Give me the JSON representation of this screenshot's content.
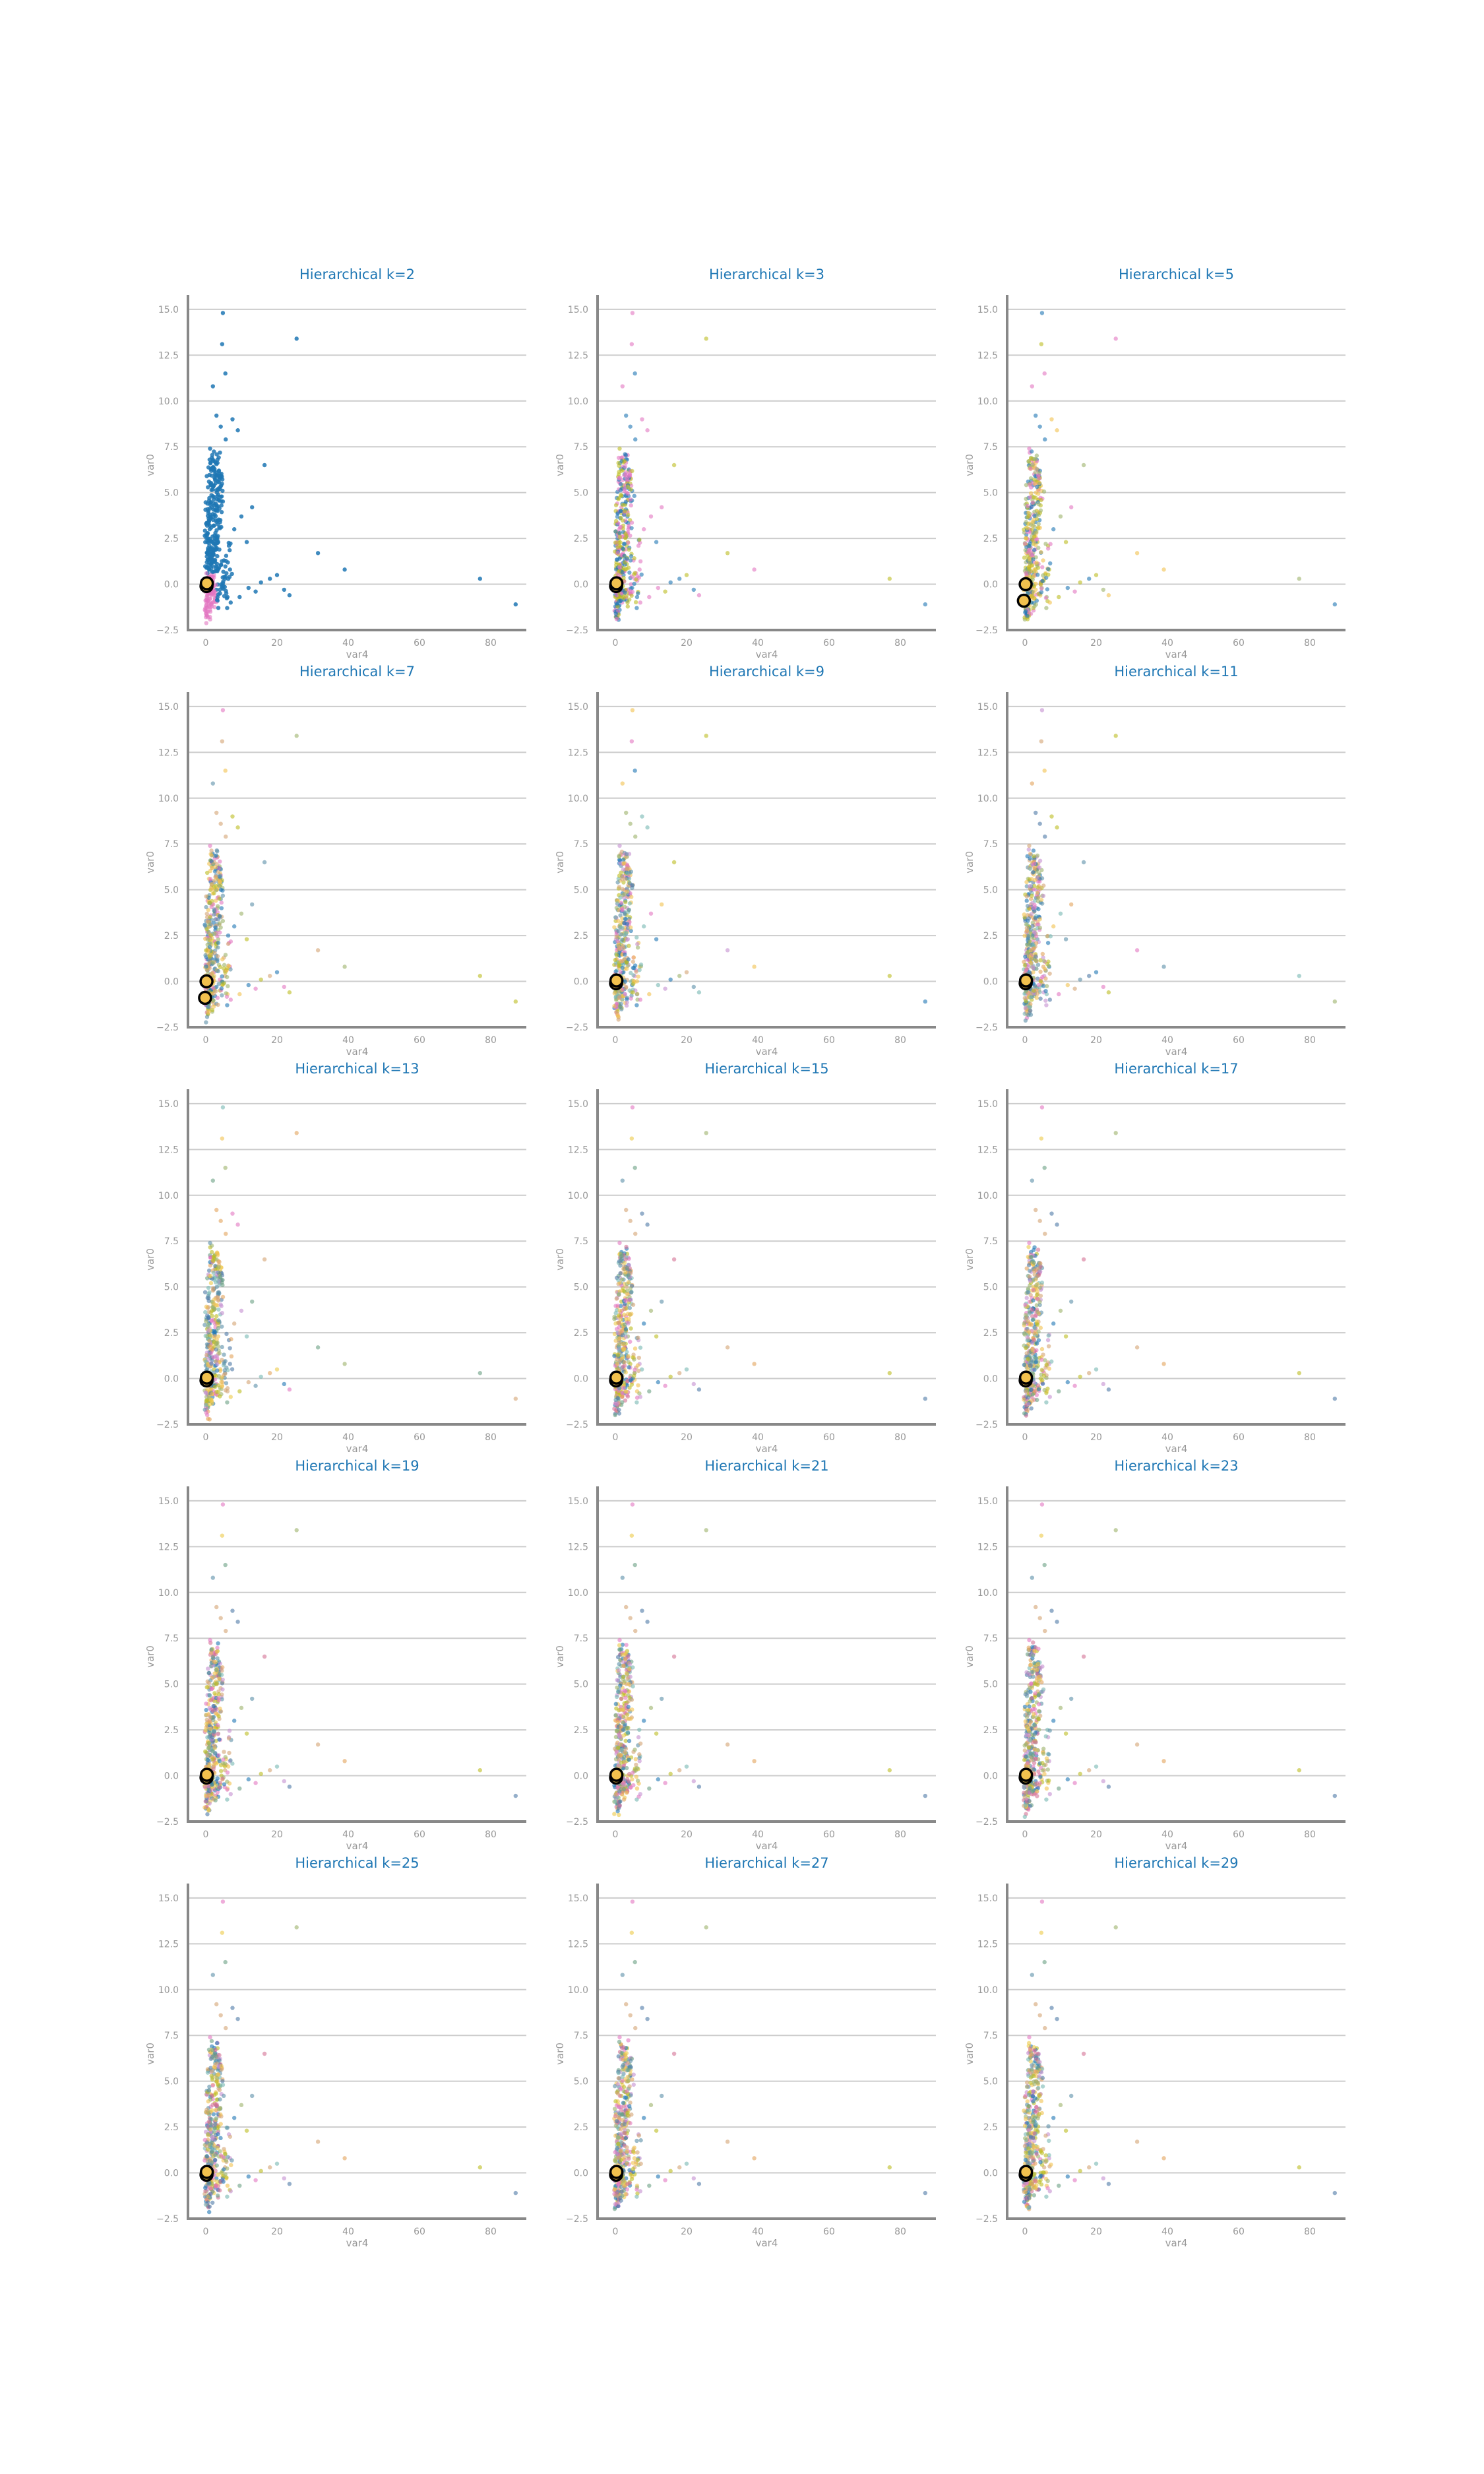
{
  "colors": {
    "title": "#1f77b4",
    "axis_text": "#999999",
    "spine": "#888888",
    "grid": "#cccccc",
    "palette": [
      "#1f77b4",
      "#e377c2",
      "#bcbd22",
      "#9db26b",
      "#f2c14e",
      "#d4a373",
      "#5b8fa8",
      "#76b7b2",
      "#c490d1",
      "#4e79a7",
      "#e2a35c",
      "#6aa084",
      "#edc948",
      "#d37295"
    ]
  },
  "chart_data": [
    {
      "type": "scatter",
      "title": "Hierarchical k=2",
      "xlabel": "var4",
      "ylabel": "var0",
      "xlim": [
        -5,
        90
      ],
      "ylim": [
        -2.5,
        15.5
      ],
      "xticks": [
        "0",
        "20",
        "40",
        "60",
        "80"
      ],
      "yticks": [
        "−2.5",
        "0.0",
        "2.5",
        "5.0",
        "7.5",
        "10.0",
        "12.5",
        "15.0"
      ],
      "grid": "horizontal",
      "k": 2,
      "centers": [
        [
          0.2,
          -0.1
        ],
        [
          0.3,
          0.05
        ]
      ]
    },
    {
      "type": "scatter",
      "title": "Hierarchical k=3",
      "xlabel": "var4",
      "ylabel": "var0",
      "xlim": [
        -5,
        90
      ],
      "ylim": [
        -2.5,
        15.5
      ],
      "xticks": [
        "0",
        "20",
        "40",
        "60",
        "80"
      ],
      "yticks": [
        "−2.5",
        "0.0",
        "2.5",
        "5.0",
        "7.5",
        "10.0",
        "12.5",
        "15.0"
      ],
      "grid": "horizontal",
      "k": 3,
      "centers": [
        [
          0.2,
          -0.1
        ],
        [
          0.3,
          0.05
        ]
      ]
    },
    {
      "type": "scatter",
      "title": "Hierarchical k=5",
      "xlabel": "var4",
      "ylabel": "var0",
      "xlim": [
        -5,
        90
      ],
      "ylim": [
        -2.5,
        15.5
      ],
      "xticks": [
        "0",
        "20",
        "40",
        "60",
        "80"
      ],
      "yticks": [
        "−2.5",
        "0.0",
        "2.5",
        "5.0",
        "7.5",
        "10.0",
        "12.5",
        "15.0"
      ],
      "grid": "horizontal",
      "k": 5,
      "centers": [
        [
          0.2,
          0.0
        ],
        [
          -0.3,
          -0.9
        ]
      ]
    },
    {
      "type": "scatter",
      "title": "Hierarchical k=7",
      "xlabel": "var4",
      "ylabel": "var0",
      "xlim": [
        -5,
        90
      ],
      "ylim": [
        -2.5,
        15.5
      ],
      "xticks": [
        "0",
        "20",
        "40",
        "60",
        "80"
      ],
      "yticks": [
        "−2.5",
        "0.0",
        "2.5",
        "5.0",
        "7.5",
        "10.0",
        "12.5",
        "15.0"
      ],
      "grid": "horizontal",
      "k": 7,
      "centers": [
        [
          0.2,
          0.0
        ],
        [
          -0.2,
          -0.9
        ]
      ]
    },
    {
      "type": "scatter",
      "title": "Hierarchical k=9",
      "xlabel": "var4",
      "ylabel": "var0",
      "xlim": [
        -5,
        90
      ],
      "ylim": [
        -2.5,
        15.5
      ],
      "xticks": [
        "0",
        "20",
        "40",
        "60",
        "80"
      ],
      "yticks": [
        "−2.5",
        "0.0",
        "2.5",
        "5.0",
        "7.5",
        "10.0",
        "12.5",
        "15.0"
      ],
      "grid": "horizontal",
      "k": 9,
      "centers": [
        [
          0.2,
          -0.1
        ],
        [
          0.3,
          0.05
        ]
      ]
    },
    {
      "type": "scatter",
      "title": "Hierarchical k=11",
      "xlabel": "var4",
      "ylabel": "var0",
      "xlim": [
        -5,
        90
      ],
      "ylim": [
        -2.5,
        15.5
      ],
      "xticks": [
        "0",
        "20",
        "40",
        "60",
        "80"
      ],
      "yticks": [
        "−2.5",
        "0.0",
        "2.5",
        "5.0",
        "7.5",
        "10.0",
        "12.5",
        "15.0"
      ],
      "grid": "horizontal",
      "k": 11,
      "centers": [
        [
          0.2,
          -0.1
        ],
        [
          0.3,
          0.05
        ]
      ]
    },
    {
      "type": "scatter",
      "title": "Hierarchical k=13",
      "xlabel": "var4",
      "ylabel": "var0",
      "xlim": [
        -5,
        90
      ],
      "ylim": [
        -2.5,
        15.5
      ],
      "xticks": [
        "0",
        "20",
        "40",
        "60",
        "80"
      ],
      "yticks": [
        "−2.5",
        "0.0",
        "2.5",
        "5.0",
        "7.5",
        "10.0",
        "12.5",
        "15.0"
      ],
      "grid": "horizontal",
      "k": 13,
      "centers": [
        [
          0.2,
          -0.1
        ],
        [
          0.3,
          0.05
        ]
      ]
    },
    {
      "type": "scatter",
      "title": "Hierarchical k=15",
      "xlabel": "var4",
      "ylabel": "var0",
      "xlim": [
        -5,
        90
      ],
      "ylim": [
        -2.5,
        15.5
      ],
      "xticks": [
        "0",
        "20",
        "40",
        "60",
        "80"
      ],
      "yticks": [
        "−2.5",
        "0.0",
        "2.5",
        "5.0",
        "7.5",
        "10.0",
        "12.5",
        "15.0"
      ],
      "grid": "horizontal",
      "k": 15,
      "centers": [
        [
          0.2,
          -0.1
        ],
        [
          0.3,
          0.05
        ]
      ]
    },
    {
      "type": "scatter",
      "title": "Hierarchical k=17",
      "xlabel": "var4",
      "ylabel": "var0",
      "xlim": [
        -5,
        90
      ],
      "ylim": [
        -2.5,
        15.5
      ],
      "xticks": [
        "0",
        "20",
        "40",
        "60",
        "80"
      ],
      "yticks": [
        "−2.5",
        "0.0",
        "2.5",
        "5.0",
        "7.5",
        "10.0",
        "12.5",
        "15.0"
      ],
      "grid": "horizontal",
      "k": 17,
      "centers": [
        [
          0.2,
          -0.1
        ],
        [
          0.3,
          0.05
        ]
      ]
    },
    {
      "type": "scatter",
      "title": "Hierarchical k=19",
      "xlabel": "var4",
      "ylabel": "var0",
      "xlim": [
        -5,
        90
      ],
      "ylim": [
        -2.5,
        15.5
      ],
      "xticks": [
        "0",
        "20",
        "40",
        "60",
        "80"
      ],
      "yticks": [
        "−2.5",
        "0.0",
        "2.5",
        "5.0",
        "7.5",
        "10.0",
        "12.5",
        "15.0"
      ],
      "grid": "horizontal",
      "k": 19,
      "centers": [
        [
          0.2,
          -0.1
        ],
        [
          0.3,
          0.05
        ]
      ]
    },
    {
      "type": "scatter",
      "title": "Hierarchical k=21",
      "xlabel": "var4",
      "ylabel": "var0",
      "xlim": [
        -5,
        90
      ],
      "ylim": [
        -2.5,
        15.5
      ],
      "xticks": [
        "0",
        "20",
        "40",
        "60",
        "80"
      ],
      "yticks": [
        "−2.5",
        "0.0",
        "2.5",
        "5.0",
        "7.5",
        "10.0",
        "12.5",
        "15.0"
      ],
      "grid": "horizontal",
      "k": 21,
      "centers": [
        [
          0.2,
          -0.1
        ],
        [
          0.3,
          0.05
        ]
      ]
    },
    {
      "type": "scatter",
      "title": "Hierarchical k=23",
      "xlabel": "var4",
      "ylabel": "var0",
      "xlim": [
        -5,
        90
      ],
      "ylim": [
        -2.5,
        15.5
      ],
      "xticks": [
        "0",
        "20",
        "40",
        "60",
        "80"
      ],
      "yticks": [
        "−2.5",
        "0.0",
        "2.5",
        "5.0",
        "7.5",
        "10.0",
        "12.5",
        "15.0"
      ],
      "grid": "horizontal",
      "k": 23,
      "centers": [
        [
          0.2,
          -0.1
        ],
        [
          0.3,
          0.05
        ]
      ]
    },
    {
      "type": "scatter",
      "title": "Hierarchical k=25",
      "xlabel": "var4",
      "ylabel": "var0",
      "xlim": [
        -5,
        90
      ],
      "ylim": [
        -2.5,
        15.5
      ],
      "xticks": [
        "0",
        "20",
        "40",
        "60",
        "80"
      ],
      "yticks": [
        "−2.5",
        "0.0",
        "2.5",
        "5.0",
        "7.5",
        "10.0",
        "12.5",
        "15.0"
      ],
      "grid": "horizontal",
      "k": 25,
      "centers": [
        [
          0.2,
          -0.1
        ],
        [
          0.3,
          0.05
        ]
      ]
    },
    {
      "type": "scatter",
      "title": "Hierarchical k=27",
      "xlabel": "var4",
      "ylabel": "var0",
      "xlim": [
        -5,
        90
      ],
      "ylim": [
        -2.5,
        15.5
      ],
      "xticks": [
        "0",
        "20",
        "40",
        "60",
        "80"
      ],
      "yticks": [
        "−2.5",
        "0.0",
        "2.5",
        "5.0",
        "7.5",
        "10.0",
        "12.5",
        "15.0"
      ],
      "grid": "horizontal",
      "k": 27,
      "centers": [
        [
          0.2,
          -0.1
        ],
        [
          0.3,
          0.05
        ]
      ]
    },
    {
      "type": "scatter",
      "title": "Hierarchical k=29",
      "xlabel": "var4",
      "ylabel": "var0",
      "xlim": [
        -5,
        90
      ],
      "ylim": [
        -2.5,
        15.5
      ],
      "xticks": [
        "0",
        "20",
        "40",
        "60",
        "80"
      ],
      "yticks": [
        "−2.5",
        "0.0",
        "2.5",
        "5.0",
        "7.5",
        "10.0",
        "12.5",
        "15.0"
      ],
      "grid": "horizontal",
      "k": 29,
      "centers": [
        [
          0.2,
          -0.1
        ],
        [
          0.3,
          0.05
        ]
      ]
    }
  ],
  "points": {
    "outliers": [
      [
        25.5,
        13.4
      ],
      [
        4.8,
        14.8
      ],
      [
        4.6,
        13.1
      ],
      [
        5.5,
        11.5
      ],
      [
        2.0,
        10.8
      ],
      [
        3.0,
        9.2
      ],
      [
        7.5,
        9.0
      ],
      [
        4.2,
        8.6
      ],
      [
        9.0,
        8.4
      ],
      [
        5.6,
        7.9
      ],
      [
        1.2,
        7.4
      ],
      [
        16.5,
        6.5
      ],
      [
        13.0,
        4.2
      ],
      [
        10.0,
        3.7
      ],
      [
        8.0,
        3.0
      ],
      [
        11.5,
        2.3
      ],
      [
        31.5,
        1.7
      ],
      [
        39.0,
        0.8
      ],
      [
        77.0,
        0.3
      ],
      [
        87.0,
        -1.1
      ],
      [
        15.5,
        0.1
      ],
      [
        18.0,
        0.3
      ],
      [
        20.0,
        0.5
      ],
      [
        22.0,
        -0.3
      ],
      [
        23.5,
        -0.6
      ],
      [
        14.0,
        -0.4
      ],
      [
        12.0,
        -0.2
      ],
      [
        9.5,
        -0.7
      ],
      [
        7.0,
        -1.0
      ],
      [
        6.0,
        -1.3
      ]
    ],
    "core": [
      [
        0.3,
        -1.7
      ],
      [
        0.6,
        -1.5
      ],
      [
        0.9,
        -1.2
      ],
      [
        0.2,
        -1.0
      ],
      [
        1.1,
        -0.8
      ],
      [
        0.4,
        -0.6
      ],
      [
        0.8,
        -0.4
      ],
      [
        1.3,
        -0.2
      ],
      [
        0.1,
        0.0
      ],
      [
        0.7,
        0.2
      ],
      [
        1.5,
        0.4
      ],
      [
        0.5,
        0.6
      ],
      [
        1.0,
        0.8
      ],
      [
        1.8,
        1.0
      ],
      [
        0.3,
        1.2
      ],
      [
        1.2,
        1.4
      ],
      [
        2.0,
        1.6
      ],
      [
        0.6,
        1.8
      ],
      [
        1.6,
        2.0
      ],
      [
        2.4,
        2.2
      ],
      [
        0.9,
        2.4
      ],
      [
        1.9,
        2.6
      ],
      [
        2.7,
        2.8
      ],
      [
        1.1,
        3.0
      ],
      [
        2.2,
        3.2
      ],
      [
        3.0,
        3.4
      ],
      [
        1.4,
        3.6
      ],
      [
        2.5,
        3.8
      ],
      [
        3.3,
        4.0
      ],
      [
        1.7,
        4.2
      ],
      [
        2.8,
        4.4
      ],
      [
        3.6,
        4.6
      ],
      [
        2.0,
        4.8
      ],
      [
        3.1,
        5.0
      ],
      [
        3.9,
        5.2
      ],
      [
        2.3,
        5.4
      ],
      [
        3.4,
        5.6
      ],
      [
        4.2,
        5.8
      ],
      [
        2.6,
        6.0
      ],
      [
        3.7,
        6.2
      ],
      [
        0.2,
        -1.3
      ],
      [
        0.5,
        -0.9
      ],
      [
        1.4,
        -0.5
      ],
      [
        2.1,
        -0.1
      ],
      [
        0.8,
        0.3
      ],
      [
        2.6,
        0.7
      ],
      [
        3.2,
        1.1
      ],
      [
        1.7,
        1.5
      ],
      [
        2.9,
        1.9
      ],
      [
        3.5,
        2.3
      ],
      [
        0.4,
        2.7
      ],
      [
        3.8,
        3.1
      ],
      [
        4.1,
        3.5
      ],
      [
        0.7,
        3.9
      ],
      [
        4.4,
        4.3
      ],
      [
        1.0,
        4.7
      ],
      [
        4.7,
        5.1
      ],
      [
        1.3,
        5.5
      ],
      [
        4.0,
        5.9
      ],
      [
        1.6,
        6.3
      ],
      [
        0.3,
        -0.2
      ],
      [
        0.9,
        0.1
      ],
      [
        1.6,
        -0.6
      ],
      [
        2.3,
        0.5
      ],
      [
        3.0,
        -0.3
      ],
      [
        3.7,
        0.9
      ],
      [
        4.4,
        0.0
      ],
      [
        5.1,
        1.3
      ],
      [
        5.8,
        0.6
      ],
      [
        6.5,
        2.1
      ],
      [
        0.6,
        -1.8
      ],
      [
        1.2,
        -1.4
      ],
      [
        1.9,
        -1.0
      ],
      [
        2.6,
        -0.8
      ],
      [
        3.3,
        -0.9
      ],
      [
        4.0,
        -0.5
      ],
      [
        4.7,
        -0.2
      ],
      [
        5.4,
        0.3
      ],
      [
        6.1,
        -0.7
      ],
      [
        6.8,
        0.8
      ],
      [
        0.1,
        3.3
      ],
      [
        0.5,
        4.4
      ],
      [
        0.9,
        5.6
      ],
      [
        1.3,
        6.6
      ],
      [
        1.7,
        6.9
      ],
      [
        2.1,
        6.4
      ],
      [
        2.5,
        6.7
      ],
      [
        2.9,
        6.1
      ],
      [
        3.3,
        6.8
      ],
      [
        3.7,
        5.7
      ],
      [
        0.2,
        0.9
      ],
      [
        0.4,
        1.7
      ],
      [
        0.6,
        2.5
      ],
      [
        0.8,
        3.3
      ],
      [
        1.0,
        2.1
      ],
      [
        1.4,
        1.1
      ],
      [
        1.8,
        0.1
      ],
      [
        2.2,
        -0.4
      ],
      [
        2.6,
        1.2
      ],
      [
        3.0,
        2.6
      ]
    ]
  }
}
